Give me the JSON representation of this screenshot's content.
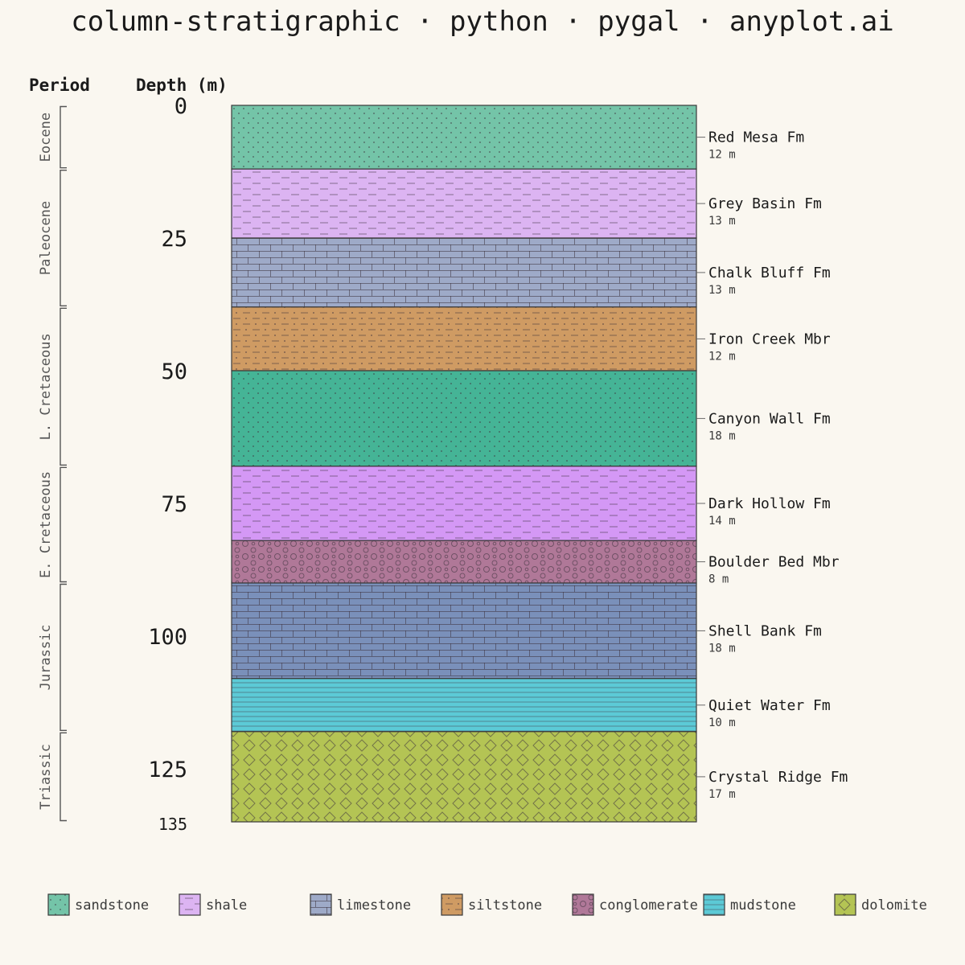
{
  "chart_data": {
    "type": "stratigraphic-column",
    "title": "column-stratigraphic · python · pygal · anyplot.ai",
    "period_header": "Period",
    "depth_header": "Depth (m)",
    "depth_unit": "m",
    "depth_range": [
      0,
      135
    ],
    "depth_ticks": [
      0,
      25,
      50,
      75,
      100,
      125
    ],
    "bottom_depth_label": "135",
    "layers": [
      {
        "name": "Red Mesa Fm",
        "top": 0,
        "bottom": 12,
        "thickness_label": "12 m",
        "lithology": "sandstone"
      },
      {
        "name": "Grey Basin Fm",
        "top": 12,
        "bottom": 25,
        "thickness_label": "13 m",
        "lithology": "shale"
      },
      {
        "name": "Chalk Bluff Fm",
        "top": 25,
        "bottom": 38,
        "thickness_label": "13 m",
        "lithology": "limestone"
      },
      {
        "name": "Iron Creek Mbr",
        "top": 38,
        "bottom": 50,
        "thickness_label": "12 m",
        "lithology": "siltstone"
      },
      {
        "name": "Canyon Wall Fm",
        "top": 50,
        "bottom": 68,
        "thickness_label": "18 m",
        "lithology": "sandstone",
        "color": "#45b496"
      },
      {
        "name": "Dark Hollow Fm",
        "top": 68,
        "bottom": 82,
        "thickness_label": "14 m",
        "lithology": "shale",
        "color": "#d498f5"
      },
      {
        "name": "Boulder Bed Mbr",
        "top": 82,
        "bottom": 90,
        "thickness_label": "8 m",
        "lithology": "conglomerate"
      },
      {
        "name": "Shell Bank Fm",
        "top": 90,
        "bottom": 108,
        "thickness_label": "18 m",
        "lithology": "limestone",
        "color": "#7a90ba"
      },
      {
        "name": "Quiet Water Fm",
        "top": 108,
        "bottom": 118,
        "thickness_label": "10 m",
        "lithology": "mudstone"
      },
      {
        "name": "Crystal Ridge Fm",
        "top": 118,
        "bottom": 135,
        "thickness_label": "17 m",
        "lithology": "dolomite"
      }
    ],
    "periods": [
      {
        "name": "Eocene",
        "top": 0,
        "bottom": 12
      },
      {
        "name": "Paleocene",
        "top": 12,
        "bottom": 38
      },
      {
        "name": "L. Cretaceous",
        "top": 38,
        "bottom": 68
      },
      {
        "name": "E. Cretaceous",
        "top": 68,
        "bottom": 90
      },
      {
        "name": "Jurassic",
        "top": 90,
        "bottom": 118
      },
      {
        "name": "Triassic",
        "top": 118,
        "bottom": 135
      }
    ],
    "lithologies": [
      {
        "key": "sandstone",
        "label": "sandstone",
        "color": "#74c4a8",
        "pattern": "dots"
      },
      {
        "key": "shale",
        "label": "shale",
        "color": "#dcb4f2",
        "pattern": "dashes"
      },
      {
        "key": "limestone",
        "label": "limestone",
        "color": "#9eaac8",
        "pattern": "bricks"
      },
      {
        "key": "siltstone",
        "label": "siltstone",
        "color": "#cf9b63",
        "pattern": "dashes-dots"
      },
      {
        "key": "conglomerate",
        "label": "conglomerate",
        "color": "#b07898",
        "pattern": "circles"
      },
      {
        "key": "mudstone",
        "label": "mudstone",
        "color": "#5ccad6",
        "pattern": "lines"
      },
      {
        "key": "dolomite",
        "label": "dolomite",
        "color": "#b4c454",
        "pattern": "diamonds"
      }
    ],
    "legend_position": "bottom",
    "grid": false
  }
}
